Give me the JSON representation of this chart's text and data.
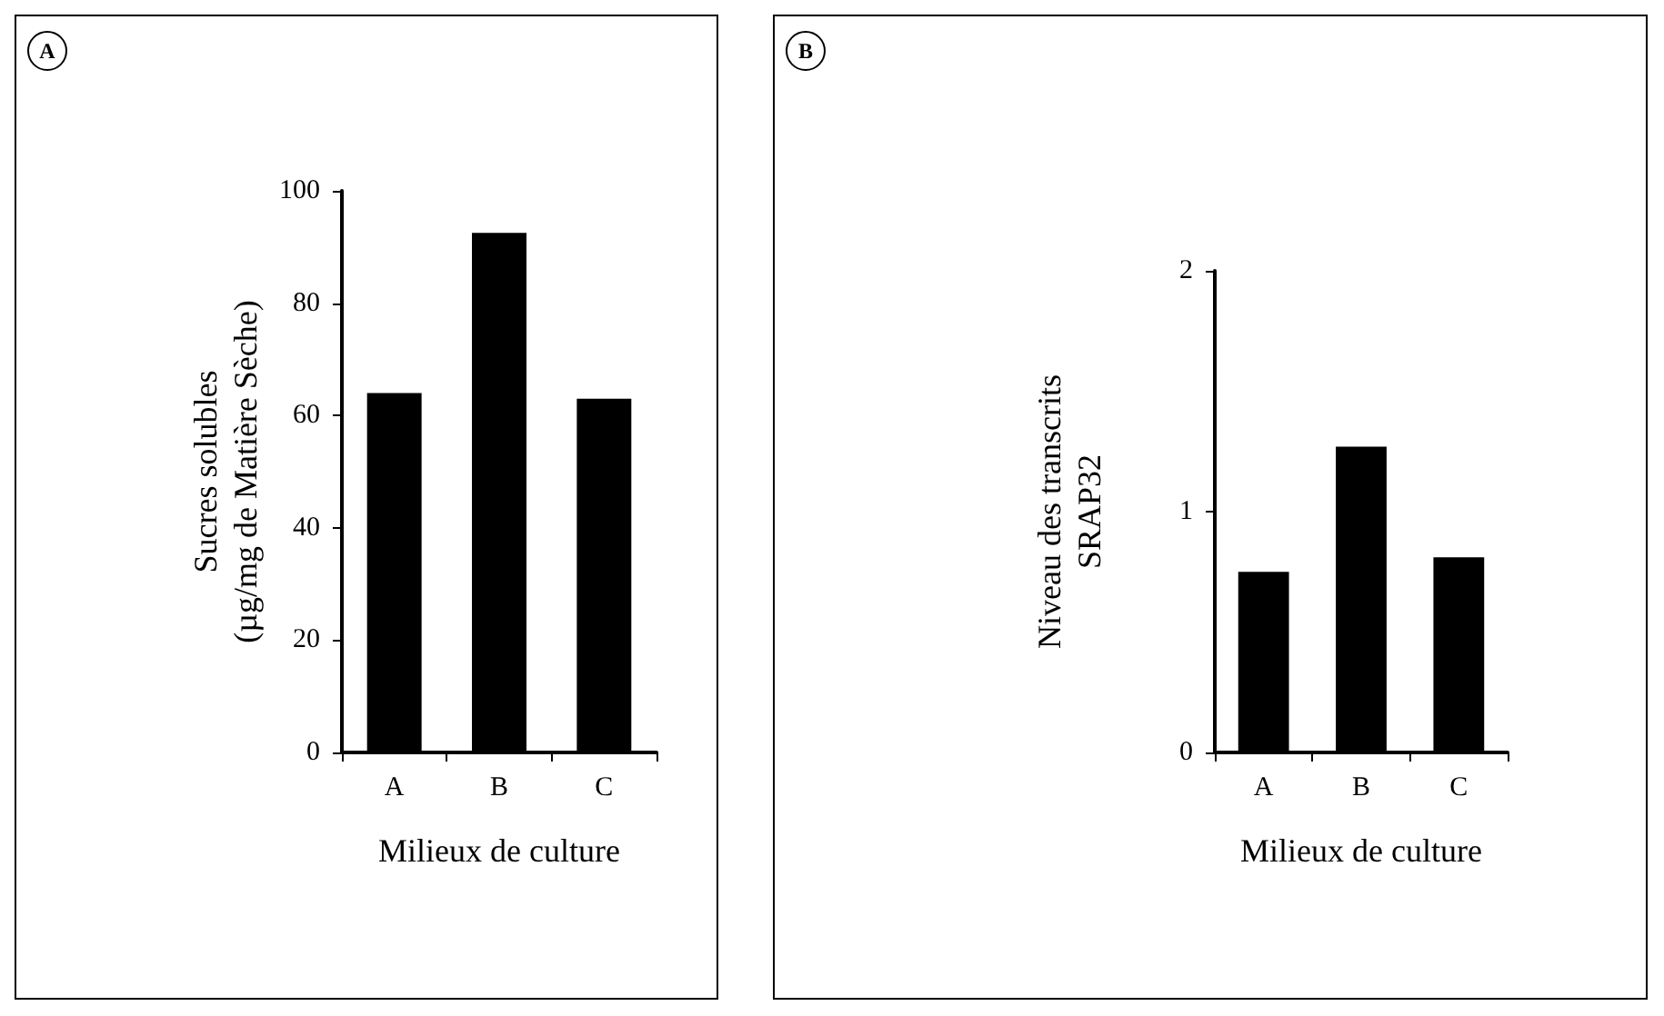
{
  "chart_data": [
    {
      "type": "bar",
      "annotations": [
        "A"
      ],
      "categories": [
        "A",
        "B",
        "C"
      ],
      "values": [
        64,
        92.5,
        63
      ],
      "color": "#000000",
      "ylim": [
        0,
        100
      ],
      "yticks": [
        0,
        20,
        40,
        60,
        80,
        100
      ],
      "ylabel": "Sucres solubles\n(µg/mg de Matière Sèche)",
      "xlabel": "Milieux de culture"
    },
    {
      "type": "bar",
      "annotations": [
        "B"
      ],
      "categories": [
        "A",
        "B",
        "C"
      ],
      "values": [
        0.75,
        1.27,
        0.81
      ],
      "color": "#000000",
      "ylim": [
        0,
        2
      ],
      "yticks": [
        0,
        1,
        2
      ],
      "ylabel": "Niveau des transcrits\nSRAP32",
      "xlabel": "Milieux de culture"
    }
  ]
}
